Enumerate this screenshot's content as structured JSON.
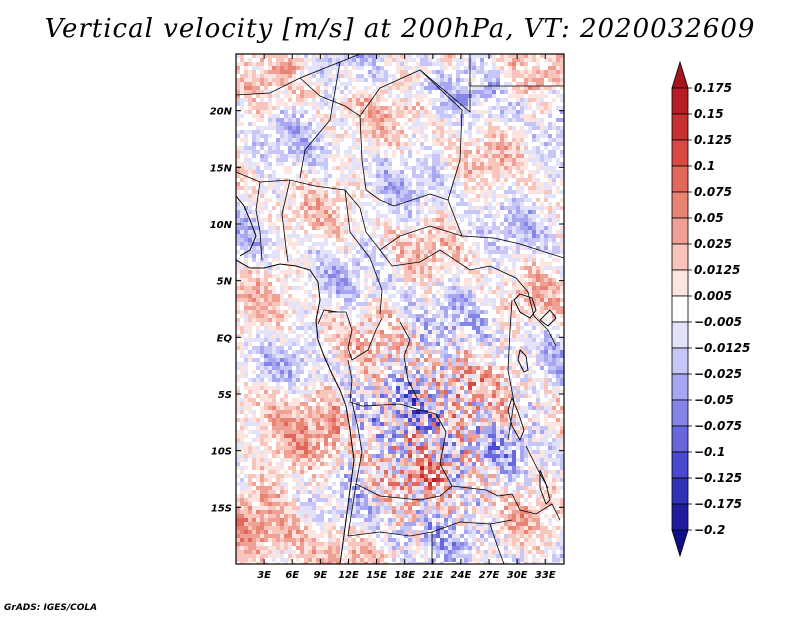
{
  "title": "Vertical velocity [m/s] at 200hPa, VT: 2020032609",
  "credit": "GrADS: IGES/COLA",
  "map": {
    "lat_labels": [
      "20N",
      "15N",
      "10N",
      "5N",
      "EQ",
      "5S",
      "10S",
      "15S"
    ],
    "lat_values": [
      20,
      15,
      10,
      5,
      0,
      -5,
      -10,
      -15
    ],
    "lon_labels": [
      "3E",
      "6E",
      "9E",
      "12E",
      "15E",
      "18E",
      "21E",
      "24E",
      "27E",
      "30E",
      "33E"
    ],
    "lon_values": [
      3,
      6,
      9,
      12,
      15,
      18,
      21,
      24,
      27,
      30,
      33
    ],
    "lon_range": [
      0,
      35
    ],
    "lat_range": [
      -20,
      25
    ],
    "frame_color": "#000000",
    "border_color": "#000000"
  },
  "colorbar": {
    "labels": [
      "0.175",
      "0.15",
      "0.125",
      "0.1",
      "0.075",
      "0.05",
      "0.025",
      "0.0125",
      "0.005",
      "−0.005",
      "−0.0125",
      "−0.025",
      "−0.05",
      "−0.075",
      "−0.1",
      "−0.125",
      "−0.175",
      "−0.2"
    ],
    "colors": [
      "#a4141f",
      "#b71c24",
      "#c82f30",
      "#d74a43",
      "#e1665b",
      "#e98374",
      "#f0a195",
      "#f7c5bb",
      "#fce5e0",
      "#ffffff",
      "#e2e2fb",
      "#c6c6f7",
      "#a6a6f1",
      "#8585e8",
      "#6666dd",
      "#4a4ace",
      "#3232b9",
      "#1d1d9e",
      "#10108a"
    ]
  }
}
